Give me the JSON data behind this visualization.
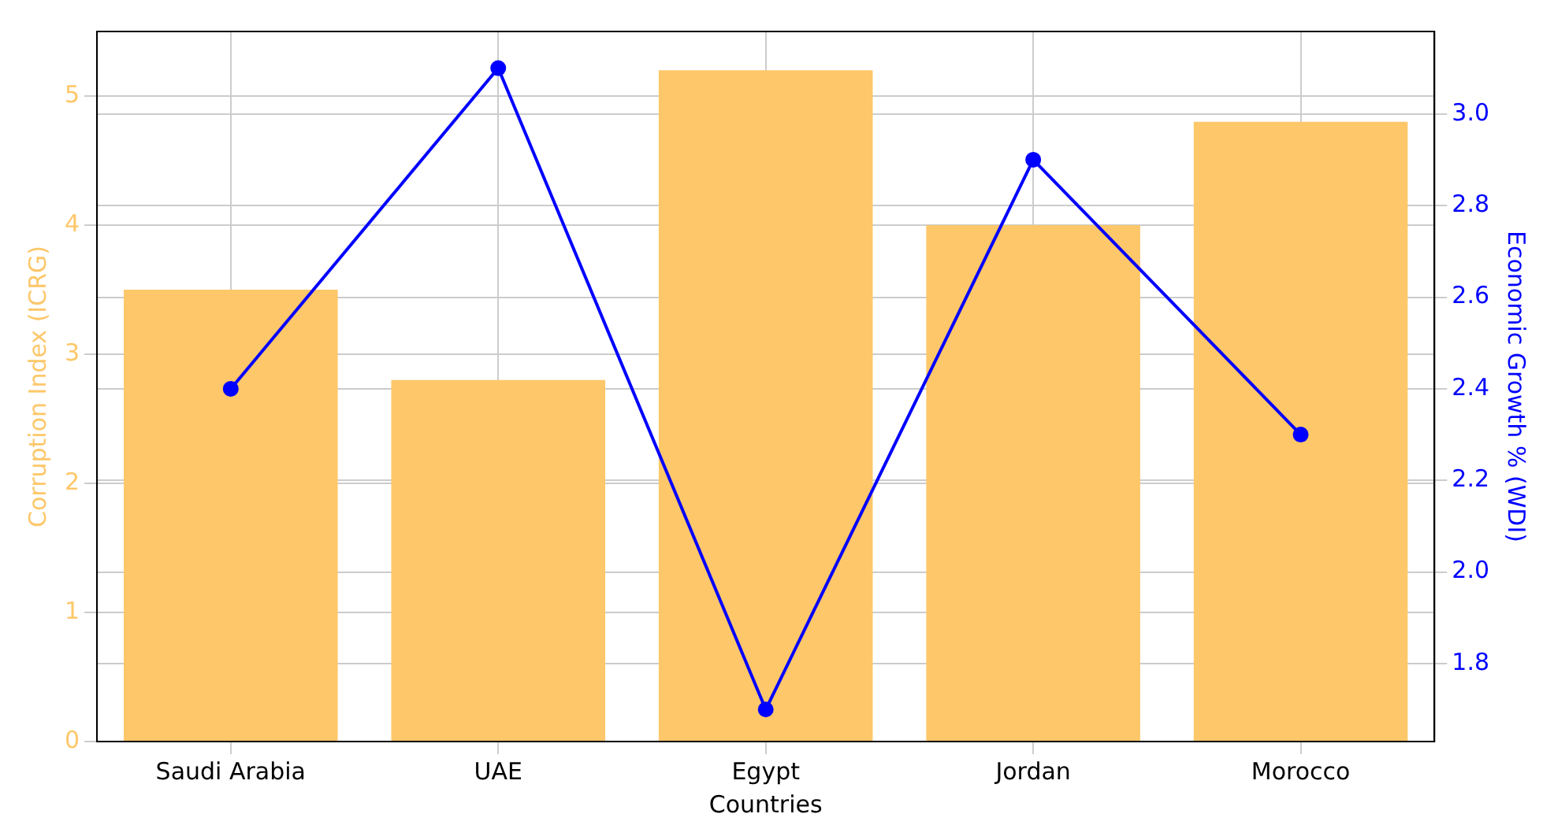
{
  "chart_data": {
    "type": "bar",
    "xlabel": "Countries",
    "ylabel": "Corruption Index (ICRG)",
    "y2label": "Economic Growth % (WDI)",
    "categories": [
      "Saudi Arabia",
      "UAE",
      "Egypt",
      "Jordan",
      "Morocco"
    ],
    "series": [
      {
        "color": "#fdc76a",
        "values": [
          3.5,
          2.8,
          5.2,
          4.0,
          4.8
        ]
      },
      {
        "type": "line",
        "axis": "y2",
        "color": "#0000ff",
        "values": [
          2.4,
          3.1,
          1.7,
          2.9,
          2.3
        ]
      }
    ],
    "ylim": [
      0,
      5.5
    ],
    "yticks": [
      0,
      1,
      2,
      3,
      4,
      5
    ],
    "y2lim": [
      1.63,
      3.18
    ],
    "y2ticks": [
      1.8,
      {
        "value": 2,
        "label": "2.0"
      },
      2.2,
      2.4,
      2.6,
      2.8,
      {
        "value": 3,
        "label": "3.0"
      }
    ],
    "grid": true,
    "marker": "circle",
    "line_style": "solid"
  }
}
